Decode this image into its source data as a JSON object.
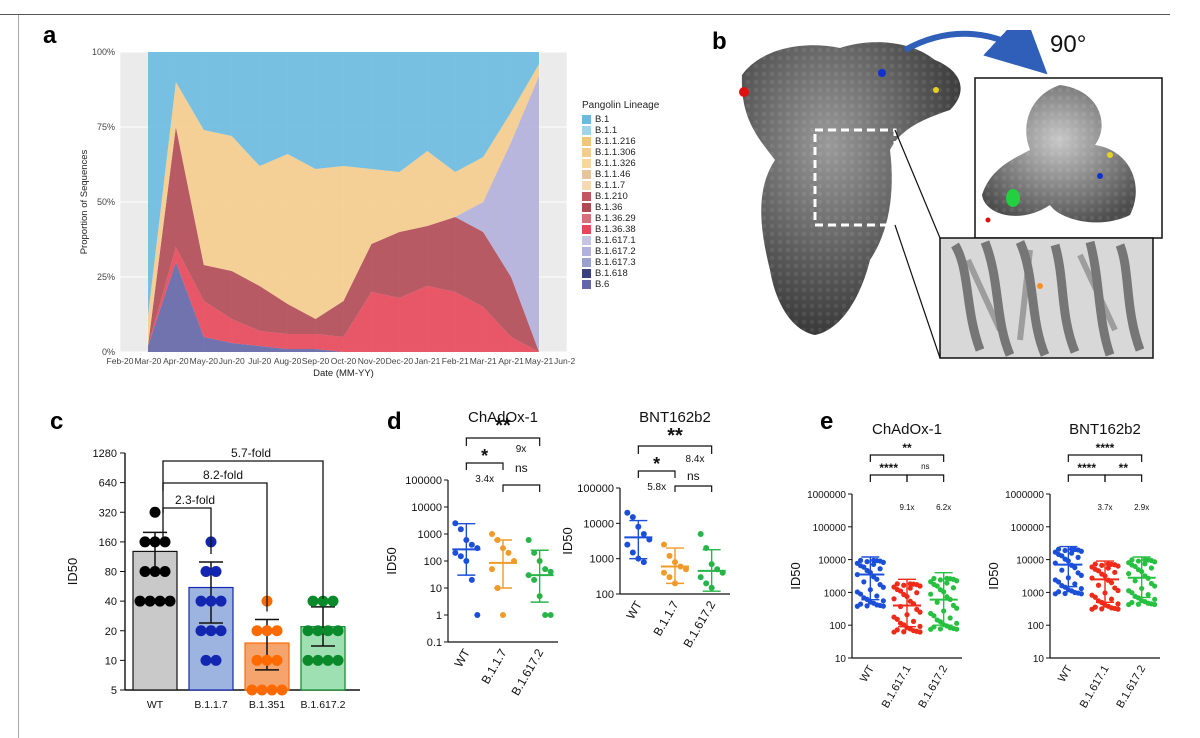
{
  "panels": {
    "a": "a",
    "b": "b",
    "c": "c",
    "d": "d",
    "e": "e"
  },
  "panel_b": {
    "rotation_label": "90°"
  },
  "legend": {
    "title": "Pangolin Lineage",
    "items": [
      {
        "label": "B.1",
        "color": "#6bbbe0"
      },
      {
        "label": "B.1.1",
        "color": "#9fd4ea"
      },
      {
        "label": "B.1.1.216",
        "color": "#f0c77a"
      },
      {
        "label": "B.1.1.306",
        "color": "#f5cc8d"
      },
      {
        "label": "B.1.1.326",
        "color": "#f7d6a0"
      },
      {
        "label": "B.1.1.46",
        "color": "#e8c49a"
      },
      {
        "label": "B.1.1.7",
        "color": "#f7d9b0"
      },
      {
        "label": "B.1.210",
        "color": "#c4555f"
      },
      {
        "label": "B.1.36",
        "color": "#b24a55"
      },
      {
        "label": "B.1.36.29",
        "color": "#d8707c"
      },
      {
        "label": "B.1.36.38",
        "color": "#e8475a"
      },
      {
        "label": "B.1.617.1",
        "color": "#c7c5e4"
      },
      {
        "label": "B.1.617.2",
        "color": "#b2b0dc"
      },
      {
        "label": "B.1.617.3",
        "color": "#9aa0d0"
      },
      {
        "label": "B.1.618",
        "color": "#3b4080"
      },
      {
        "label": "B.6",
        "color": "#6466a8"
      }
    ]
  },
  "chart_data": [
    {
      "type": "area",
      "panel": "a",
      "xlabel": "Date (MM-YY)",
      "ylabel": "Proportion of Sequences",
      "x_tick_labels": [
        "Feb-20",
        "Mar-20",
        "Apr-20",
        "May-20",
        "Jun-20",
        "Jul-20",
        "Aug-20",
        "Sep-20",
        "Oct-20",
        "Nov-20",
        "Dec-20",
        "Jan-21",
        "Feb-21",
        "Mar-21",
        "Apr-21",
        "May-21",
        "Jun-21"
      ],
      "y_tick_labels": [
        "0%",
        "25%",
        "50%",
        "75%",
        "100%"
      ],
      "ylim": [
        0,
        1
      ],
      "x": [
        "Mar-20",
        "Apr-20",
        "May-20",
        "Jun-20",
        "Jul-20",
        "Aug-20",
        "Sep-20",
        "Oct-20",
        "Nov-20",
        "Dec-20",
        "Jan-21",
        "Feb-21",
        "Mar-21",
        "Apr-21",
        "May-21"
      ],
      "series": [
        {
          "name": "B.6",
          "values": [
            0.02,
            0.3,
            0.05,
            0.03,
            0.02,
            0.01,
            0.01,
            0.0,
            0.0,
            0.0,
            0.0,
            0.0,
            0.0,
            0.0,
            0.0
          ]
        },
        {
          "name": "B.1.36.38",
          "values": [
            0.0,
            0.05,
            0.12,
            0.08,
            0.05,
            0.05,
            0.05,
            0.05,
            0.2,
            0.18,
            0.22,
            0.2,
            0.15,
            0.05,
            0.0
          ]
        },
        {
          "name": "B.1.36",
          "values": [
            0.0,
            0.4,
            0.12,
            0.16,
            0.15,
            0.1,
            0.05,
            0.12,
            0.16,
            0.22,
            0.2,
            0.25,
            0.25,
            0.2,
            0.0
          ]
        },
        {
          "name": "B.1.617.2",
          "values": [
            0.0,
            0.0,
            0.0,
            0.0,
            0.0,
            0.0,
            0.0,
            0.0,
            0.0,
            0.0,
            0.0,
            0.0,
            0.1,
            0.45,
            0.92
          ]
        },
        {
          "name": "B.1.1.306",
          "values": [
            0.1,
            0.15,
            0.45,
            0.45,
            0.4,
            0.5,
            0.5,
            0.45,
            0.25,
            0.2,
            0.25,
            0.15,
            0.15,
            0.1,
            0.04
          ]
        },
        {
          "name": "B.1",
          "values": [
            0.88,
            0.1,
            0.26,
            0.28,
            0.38,
            0.34,
            0.39,
            0.38,
            0.39,
            0.4,
            0.33,
            0.4,
            0.35,
            0.2,
            0.04
          ]
        }
      ]
    },
    {
      "type": "bar",
      "panel": "c",
      "categories": [
        "WT",
        "B.1.1.7",
        "B.1.351",
        "B.1.617.2"
      ],
      "values": [
        128,
        55,
        15,
        22
      ],
      "error_low": [
        80,
        24,
        8,
        14
      ],
      "error_high": [
        200,
        100,
        26,
        35
      ],
      "colors": [
        "#c9c9c9",
        "#9db4e0",
        "#f4a46c",
        "#9ee0b2"
      ],
      "point_colors": [
        "#000000",
        "#1326b0",
        "#ff6a00",
        "#0a8a2a"
      ],
      "points": [
        [
          320,
          160,
          160,
          160,
          80,
          80,
          80,
          40,
          40,
          40,
          40
        ],
        [
          160,
          80,
          80,
          40,
          40,
          40,
          20,
          20,
          20,
          10,
          10
        ],
        [
          40,
          20,
          20,
          20,
          10,
          10,
          10,
          5,
          5,
          5,
          5
        ],
        [
          40,
          40,
          40,
          20,
          20,
          20,
          20,
          10,
          10,
          10,
          10
        ]
      ],
      "ylabel": "ID50",
      "y_tick_labels": [
        "5",
        "10",
        "20",
        "40",
        "80",
        "160",
        "320",
        "640",
        "1280"
      ],
      "scale": "log2",
      "ylim": [
        5,
        1280
      ],
      "brackets": [
        "2.3-fold",
        "8.2-fold",
        "5.7-fold"
      ]
    },
    {
      "type": "scatter",
      "panel": "d-left",
      "title": "ChAdOx-1",
      "categories": [
        "WT",
        "B.1.1.7",
        "B.1.617.2"
      ],
      "colors": [
        "#1b4fd8",
        "#f09a2a",
        "#27b54a"
      ],
      "median": [
        270,
        85,
        30
      ],
      "error_low": [
        30,
        10,
        3
      ],
      "error_high": [
        2400,
        600,
        250
      ],
      "points": [
        [
          2500,
          1500,
          600,
          400,
          300,
          200,
          150,
          100,
          20,
          1
        ],
        [
          1000,
          600,
          300,
          200,
          100,
          50,
          10,
          1
        ],
        [
          600,
          200,
          100,
          50,
          40,
          30,
          20,
          5,
          1,
          1
        ]
      ],
      "ylabel": "ID50",
      "y_tick_labels": [
        "0.1",
        "1",
        "10",
        "100",
        "1000",
        "10000",
        "100000"
      ],
      "scale": "log10",
      "ylim": [
        0.1,
        100000
      ],
      "annotations": [
        "**",
        "9x",
        "*",
        "3.4x",
        "ns"
      ]
    },
    {
      "type": "scatter",
      "panel": "d-right",
      "title": "BNT162b2",
      "categories": [
        "WT",
        "B.1.1.7",
        "B.1.617.2"
      ],
      "colors": [
        "#1b4fd8",
        "#f09a2a",
        "#27b54a"
      ],
      "median": [
        4000,
        600,
        450
      ],
      "error_low": [
        1000,
        200,
        120
      ],
      "error_high": [
        12000,
        2000,
        1800
      ],
      "points": [
        [
          20000,
          15000,
          8000,
          5000,
          3500,
          2500,
          1500,
          1000,
          800
        ],
        [
          2500,
          1200,
          800,
          600,
          500,
          400,
          300,
          200
        ],
        [
          5000,
          2000,
          700,
          500,
          400,
          300,
          200,
          150
        ]
      ],
      "ylabel": "ID50",
      "y_tick_labels": [
        "100",
        "1000",
        "10000",
        "100000"
      ],
      "scale": "log10",
      "ylim": [
        100,
        100000
      ],
      "annotations": [
        "**",
        "8.4x",
        "*",
        "5.8x",
        "ns"
      ]
    },
    {
      "type": "scatter",
      "panel": "e-left",
      "title": "ChAdOx-1",
      "categories": [
        "WT",
        "B.1.617.1",
        "B.1.617.2"
      ],
      "colors": [
        "#1b4fd8",
        "#f02a18",
        "#27c040"
      ],
      "median": [
        3500,
        400,
        600
      ],
      "error_low": [
        600,
        90,
        100
      ],
      "error_high": [
        12000,
        2500,
        4000
      ],
      "ylabel": "ID50",
      "y_tick_labels": [
        "10",
        "100",
        "1000",
        "10000",
        "100000",
        "1000000"
      ],
      "scale": "log10",
      "ylim": [
        10,
        1000000
      ],
      "annotations": [
        "**",
        "****",
        "ns",
        "9.1x",
        "6.2x"
      ]
    },
    {
      "type": "scatter",
      "panel": "e-right",
      "title": "BNT162b2",
      "categories": [
        "WT",
        "B.1.617.1",
        "B.1.617.2"
      ],
      "colors": [
        "#1b4fd8",
        "#f02a18",
        "#27c040"
      ],
      "median": [
        7000,
        2500,
        2800
      ],
      "error_low": [
        1500,
        500,
        700
      ],
      "error_high": [
        25000,
        9000,
        12000
      ],
      "ylabel": "ID50",
      "y_tick_labels": [
        "10",
        "100",
        "1000",
        "10000",
        "100000",
        "1000000"
      ],
      "scale": "log10",
      "ylim": [
        10,
        1000000
      ],
      "annotations": [
        "****",
        "****",
        "**",
        "3.7x",
        "2.9x"
      ]
    }
  ]
}
